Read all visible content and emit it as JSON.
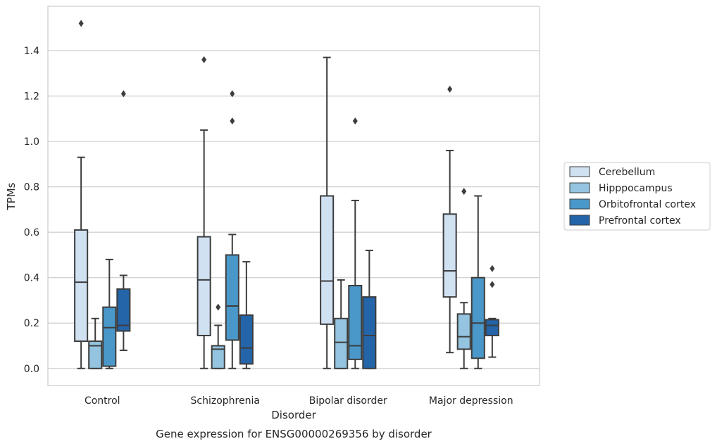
{
  "chart_data": {
    "type": "boxplot",
    "caption": "Gene expression for ENSG00000269356 by disorder",
    "xlabel": "Disorder",
    "ylabel": "TPMs",
    "categories": [
      "Control",
      "Schizophrenia",
      "Bipolar disorder",
      "Major depression"
    ],
    "ylim": [
      -0.075,
      1.595
    ],
    "yticks": [
      0.0,
      0.2,
      0.4,
      0.6,
      0.8,
      1.0,
      1.2,
      1.4
    ],
    "ytick_labels": [
      "0.0",
      "0.2",
      "0.4",
      "0.6",
      "0.8",
      "1.0",
      "1.2",
      "1.4"
    ],
    "grid": "horizontal",
    "legend_position": "right",
    "series": [
      {
        "name": "Cerebellum",
        "color": "#d0e1f2",
        "boxes": [
          {
            "whislo": 0.0,
            "q1": 0.12,
            "med": 0.38,
            "q3": 0.61,
            "whishi": 0.93,
            "fliers": [
              1.52
            ]
          },
          {
            "whislo": 0.0,
            "q1": 0.145,
            "med": 0.39,
            "q3": 0.58,
            "whishi": 1.05,
            "fliers": [
              1.36
            ]
          },
          {
            "whislo": 0.0,
            "q1": 0.195,
            "med": 0.385,
            "q3": 0.76,
            "whishi": 1.37,
            "fliers": []
          },
          {
            "whislo": 0.07,
            "q1": 0.315,
            "med": 0.43,
            "q3": 0.68,
            "whishi": 0.96,
            "fliers": [
              1.23
            ]
          }
        ]
      },
      {
        "name": "Hipppocampus",
        "color": "#94c4df",
        "boxes": [
          {
            "whislo": 0.0,
            "q1": 0.0,
            "med": 0.1,
            "q3": 0.12,
            "whishi": 0.22,
            "fliers": []
          },
          {
            "whislo": 0.0,
            "q1": 0.0,
            "med": 0.085,
            "q3": 0.1,
            "whishi": 0.19,
            "fliers": [
              0.27
            ]
          },
          {
            "whislo": 0.0,
            "q1": 0.0,
            "med": 0.115,
            "q3": 0.22,
            "whishi": 0.39,
            "fliers": []
          },
          {
            "whislo": 0.0,
            "q1": 0.085,
            "med": 0.14,
            "q3": 0.24,
            "whishi": 0.29,
            "fliers": [
              0.78
            ]
          }
        ]
      },
      {
        "name": "Orbitofrontal cortex",
        "color": "#4a98c9",
        "boxes": [
          {
            "whislo": 0.0,
            "q1": 0.01,
            "med": 0.18,
            "q3": 0.27,
            "whishi": 0.48,
            "fliers": []
          },
          {
            "whislo": 0.0,
            "q1": 0.125,
            "med": 0.275,
            "q3": 0.5,
            "whishi": 0.59,
            "fliers": [
              1.09,
              1.21
            ]
          },
          {
            "whislo": 0.0,
            "q1": 0.04,
            "med": 0.1,
            "q3": 0.365,
            "whishi": 0.74,
            "fliers": [
              1.09
            ]
          },
          {
            "whislo": 0.0,
            "q1": 0.045,
            "med": 0.2,
            "q3": 0.4,
            "whishi": 0.76,
            "fliers": []
          }
        ]
      },
      {
        "name": "Prefrontal cortex",
        "color": "#2464a8",
        "boxes": [
          {
            "whislo": 0.08,
            "q1": 0.165,
            "med": 0.19,
            "q3": 0.35,
            "whishi": 0.41,
            "fliers": [
              1.21
            ]
          },
          {
            "whislo": 0.0,
            "q1": 0.02,
            "med": 0.09,
            "q3": 0.235,
            "whishi": 0.47,
            "fliers": []
          },
          {
            "whislo": 0.0,
            "q1": 0.0,
            "med": 0.145,
            "q3": 0.315,
            "whishi": 0.52,
            "fliers": []
          },
          {
            "whislo": 0.05,
            "q1": 0.145,
            "med": 0.19,
            "q3": 0.215,
            "whishi": 0.22,
            "fliers": [
              0.37,
              0.44
            ]
          }
        ]
      }
    ]
  }
}
